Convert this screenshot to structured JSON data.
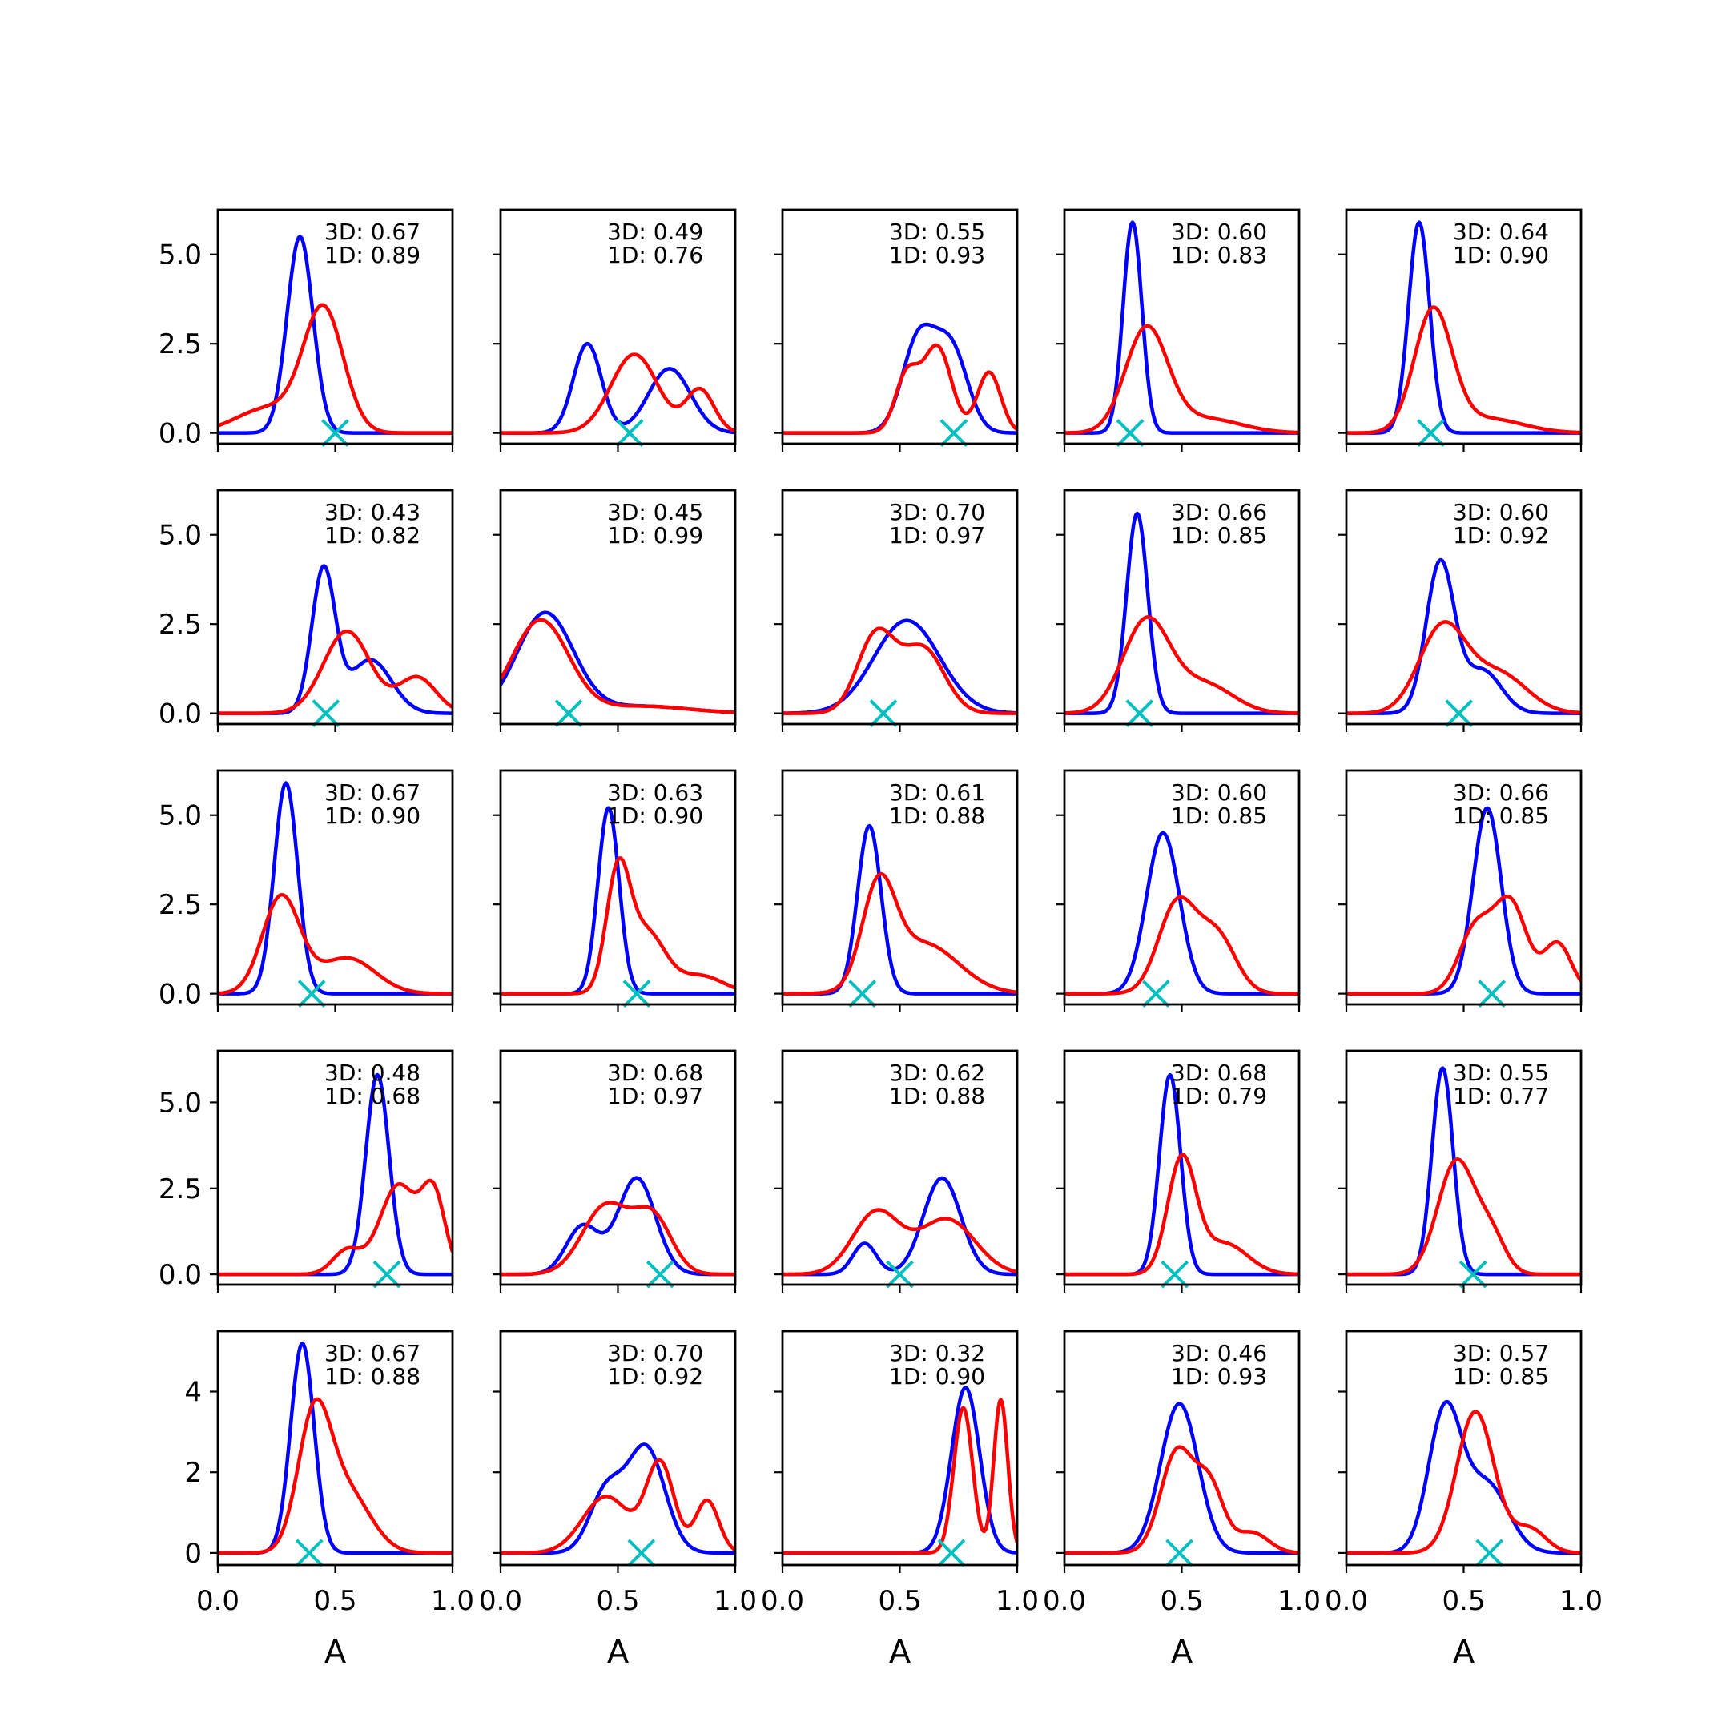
{
  "chart_data": {
    "type": "line",
    "grid_rows": 5,
    "grid_cols": 5,
    "xlim": [
      0.0,
      1.0
    ],
    "x_ticks": [
      "0.0",
      "0.5",
      "1.0"
    ],
    "xlabel": "A",
    "row_ylim": [
      [
        -0.3,
        6.25
      ],
      [
        -0.3,
        6.25
      ],
      [
        -0.3,
        6.25
      ],
      [
        -0.3,
        6.5
      ],
      [
        -0.3,
        5.5
      ]
    ],
    "row_yticks": [
      [
        {
          "v": 0,
          "label": "0.0"
        },
        {
          "v": 2.5,
          "label": "2.5"
        },
        {
          "v": 5,
          "label": "5.0"
        }
      ],
      [
        {
          "v": 0,
          "label": "0.0"
        },
        {
          "v": 2.5,
          "label": "2.5"
        },
        {
          "v": 5,
          "label": "5.0"
        }
      ],
      [
        {
          "v": 0,
          "label": "0.0"
        },
        {
          "v": 2.5,
          "label": "2.5"
        },
        {
          "v": 5,
          "label": "5.0"
        }
      ],
      [
        {
          "v": 0,
          "label": "0.0"
        },
        {
          "v": 2.5,
          "label": "2.5"
        },
        {
          "v": 5,
          "label": "5.0"
        }
      ],
      [
        {
          "v": 0,
          "label": "0"
        },
        {
          "v": 2,
          "label": "2"
        },
        {
          "v": 4,
          "label": "4"
        }
      ]
    ],
    "colors": {
      "series_3d": "#0000ff",
      "series_1d": "#ff0000",
      "marker": "#00bfbf"
    },
    "panels": [
      {
        "label_3d": "3D: 0.67",
        "label_1d": "1D: 0.89",
        "marker_x": 0.5,
        "blue": [
          [
            0.35,
            5.5,
            0.055
          ]
        ],
        "red": [
          [
            0.45,
            3.4,
            0.085
          ],
          [
            0.22,
            0.7,
            0.14
          ]
        ]
      },
      {
        "label_3d": "3D: 0.49",
        "label_1d": "1D: 0.76",
        "marker_x": 0.55,
        "blue": [
          [
            0.37,
            2.5,
            0.06
          ],
          [
            0.72,
            1.8,
            0.09
          ]
        ],
        "red": [
          [
            0.57,
            2.2,
            0.1
          ],
          [
            0.85,
            1.2,
            0.06
          ]
        ]
      },
      {
        "label_3d": "3D: 0.55",
        "label_1d": "1D: 0.93",
        "marker_x": 0.73,
        "blue": [
          [
            0.58,
            2.6,
            0.07
          ],
          [
            0.72,
            2.3,
            0.07
          ]
        ],
        "red": [
          [
            0.53,
            1.6,
            0.05
          ],
          [
            0.66,
            2.4,
            0.06
          ],
          [
            0.88,
            1.7,
            0.05
          ]
        ]
      },
      {
        "label_3d": "3D: 0.60",
        "label_1d": "1D: 0.83",
        "marker_x": 0.28,
        "blue": [
          [
            0.29,
            5.9,
            0.04
          ]
        ],
        "red": [
          [
            0.35,
            2.9,
            0.09
          ],
          [
            0.6,
            0.4,
            0.15
          ]
        ]
      },
      {
        "label_3d": "3D: 0.64",
        "label_1d": "1D: 0.90",
        "marker_x": 0.36,
        "blue": [
          [
            0.31,
            5.9,
            0.045
          ]
        ],
        "red": [
          [
            0.37,
            3.4,
            0.08
          ],
          [
            0.6,
            0.4,
            0.15
          ]
        ]
      },
      {
        "label_3d": "3D: 0.43",
        "label_1d": "1D: 0.82",
        "marker_x": 0.46,
        "blue": [
          [
            0.45,
            4.0,
            0.05
          ],
          [
            0.65,
            1.5,
            0.09
          ]
        ],
        "red": [
          [
            0.55,
            2.3,
            0.1
          ],
          [
            0.85,
            1.0,
            0.08
          ]
        ]
      },
      {
        "label_3d": "3D: 0.45",
        "label_1d": "1D: 0.99",
        "marker_x": 0.29,
        "blue": [
          [
            0.19,
            2.8,
            0.12
          ],
          [
            0.6,
            0.2,
            0.2
          ]
        ],
        "red": [
          [
            0.17,
            2.6,
            0.12
          ],
          [
            0.6,
            0.2,
            0.2
          ]
        ]
      },
      {
        "label_3d": "3D: 0.70",
        "label_1d": "1D: 0.97",
        "marker_x": 0.43,
        "blue": [
          [
            0.53,
            2.6,
            0.14
          ]
        ],
        "red": [
          [
            0.4,
            2.2,
            0.08
          ],
          [
            0.6,
            1.8,
            0.09
          ]
        ]
      },
      {
        "label_3d": "3D: 0.66",
        "label_1d": "1D: 0.85",
        "marker_x": 0.32,
        "blue": [
          [
            0.31,
            5.6,
            0.045
          ]
        ],
        "red": [
          [
            0.35,
            2.6,
            0.1
          ],
          [
            0.6,
            0.8,
            0.12
          ]
        ]
      },
      {
        "label_3d": "3D: 0.60",
        "label_1d": "1D: 0.92",
        "marker_x": 0.48,
        "blue": [
          [
            0.4,
            4.2,
            0.06
          ],
          [
            0.58,
            1.2,
            0.08
          ]
        ],
        "red": [
          [
            0.41,
            2.4,
            0.1
          ],
          [
            0.65,
            1.1,
            0.12
          ]
        ]
      },
      {
        "label_3d": "3D: 0.67",
        "label_1d": "1D: 0.90",
        "marker_x": 0.4,
        "blue": [
          [
            0.29,
            5.9,
            0.05
          ]
        ],
        "red": [
          [
            0.27,
            2.7,
            0.08
          ],
          [
            0.55,
            1.0,
            0.12
          ]
        ]
      },
      {
        "label_3d": "3D: 0.63",
        "label_1d": "1D: 0.90",
        "marker_x": 0.58,
        "blue": [
          [
            0.46,
            5.2,
            0.045
          ]
        ],
        "red": [
          [
            0.5,
            3.2,
            0.05
          ],
          [
            0.62,
            1.7,
            0.08
          ],
          [
            0.85,
            0.5,
            0.1
          ]
        ]
      },
      {
        "label_3d": "3D: 0.61",
        "label_1d": "1D: 0.88",
        "marker_x": 0.34,
        "blue": [
          [
            0.37,
            4.7,
            0.05
          ]
        ],
        "red": [
          [
            0.41,
            2.7,
            0.07
          ],
          [
            0.6,
            1.4,
            0.15
          ]
        ]
      },
      {
        "label_3d": "3D: 0.60",
        "label_1d": "1D: 0.85",
        "marker_x": 0.39,
        "blue": [
          [
            0.42,
            4.5,
            0.07
          ]
        ],
        "red": [
          [
            0.48,
            2.5,
            0.08
          ],
          [
            0.65,
            1.6,
            0.08
          ]
        ]
      },
      {
        "label_3d": "3D: 0.66",
        "label_1d": "1D: 0.85",
        "marker_x": 0.62,
        "blue": [
          [
            0.6,
            5.2,
            0.06
          ]
        ],
        "red": [
          [
            0.55,
            1.8,
            0.07
          ],
          [
            0.7,
            2.5,
            0.07
          ],
          [
            0.9,
            1.4,
            0.06
          ]
        ]
      },
      {
        "label_3d": "3D: 0.48",
        "label_1d": "1D: 0.68",
        "marker_x": 0.72,
        "blue": [
          [
            0.68,
            5.8,
            0.05
          ]
        ],
        "red": [
          [
            0.55,
            0.7,
            0.06
          ],
          [
            0.77,
            2.6,
            0.08
          ],
          [
            0.92,
            2.2,
            0.05
          ]
        ]
      },
      {
        "label_3d": "3D: 0.68",
        "label_1d": "1D: 0.97",
        "marker_x": 0.68,
        "blue": [
          [
            0.35,
            1.4,
            0.07
          ],
          [
            0.58,
            2.8,
            0.08
          ]
        ],
        "red": [
          [
            0.45,
            2.0,
            0.1
          ],
          [
            0.65,
            1.6,
            0.08
          ]
        ]
      },
      {
        "label_3d": "3D: 0.62",
        "label_1d": "1D: 0.88",
        "marker_x": 0.5,
        "blue": [
          [
            0.35,
            0.9,
            0.05
          ],
          [
            0.68,
            2.8,
            0.08
          ]
        ],
        "red": [
          [
            0.4,
            1.8,
            0.1
          ],
          [
            0.7,
            1.6,
            0.12
          ]
        ]
      },
      {
        "label_3d": "3D: 0.68",
        "label_1d": "1D: 0.79",
        "marker_x": 0.47,
        "blue": [
          [
            0.45,
            5.8,
            0.045
          ]
        ],
        "red": [
          [
            0.5,
            3.3,
            0.06
          ],
          [
            0.68,
            0.9,
            0.1
          ]
        ]
      },
      {
        "label_3d": "3D: 0.55",
        "label_1d": "1D: 0.77",
        "marker_x": 0.54,
        "blue": [
          [
            0.41,
            6.0,
            0.045
          ]
        ],
        "red": [
          [
            0.47,
            3.3,
            0.08
          ],
          [
            0.62,
            1.0,
            0.06
          ]
        ]
      },
      {
        "label_3d": "3D: 0.67",
        "label_1d": "1D: 0.88",
        "marker_x": 0.39,
        "blue": [
          [
            0.36,
            5.2,
            0.05
          ]
        ],
        "red": [
          [
            0.41,
            3.2,
            0.07
          ],
          [
            0.55,
            1.5,
            0.1
          ]
        ]
      },
      {
        "label_3d": "3D: 0.70",
        "label_1d": "1D: 0.92",
        "marker_x": 0.6,
        "blue": [
          [
            0.62,
            2.6,
            0.08
          ],
          [
            0.45,
            1.5,
            0.07
          ]
        ],
        "red": [
          [
            0.45,
            1.4,
            0.1
          ],
          [
            0.68,
            2.2,
            0.06
          ],
          [
            0.88,
            1.3,
            0.05
          ]
        ]
      },
      {
        "label_3d": "3D: 0.32",
        "label_1d": "1D: 0.90",
        "marker_x": 0.72,
        "blue": [
          [
            0.78,
            4.1,
            0.06
          ]
        ],
        "red": [
          [
            0.77,
            3.6,
            0.04
          ],
          [
            0.93,
            3.8,
            0.03
          ]
        ]
      },
      {
        "label_3d": "3D: 0.46",
        "label_1d": "1D: 0.93",
        "marker_x": 0.49,
        "blue": [
          [
            0.49,
            3.7,
            0.08
          ]
        ],
        "red": [
          [
            0.48,
            2.5,
            0.07
          ],
          [
            0.62,
            1.6,
            0.06
          ],
          [
            0.8,
            0.5,
            0.07
          ]
        ]
      },
      {
        "label_3d": "3D: 0.57",
        "label_1d": "1D: 0.85",
        "marker_x": 0.61,
        "blue": [
          [
            0.42,
            3.5,
            0.07
          ],
          [
            0.6,
            1.7,
            0.09
          ]
        ],
        "red": [
          [
            0.55,
            3.5,
            0.08
          ],
          [
            0.78,
            0.6,
            0.07
          ]
        ]
      }
    ]
  }
}
